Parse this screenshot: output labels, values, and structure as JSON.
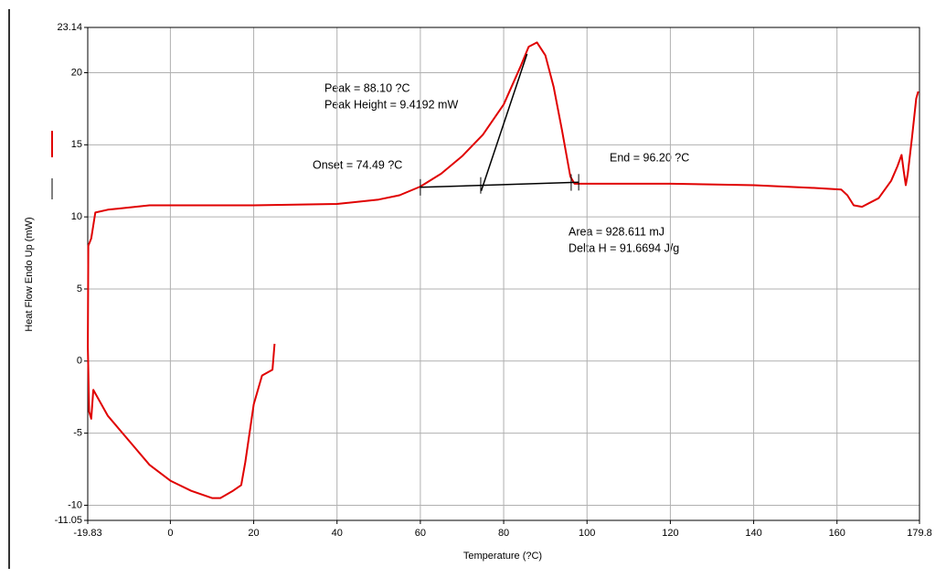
{
  "chart_data": {
    "type": "line",
    "xlabel": "Temperature (?C)",
    "ylabel": "Heat Flow Endo Up (mW)",
    "x": [
      25,
      24.5,
      22,
      20,
      18,
      17,
      15,
      12,
      10,
      5,
      0,
      -5,
      -10,
      -15,
      -18.5,
      -19,
      -19.5,
      -19.8,
      -19.7,
      -19,
      -18,
      -15,
      -5,
      20,
      40,
      50,
      55,
      60,
      65,
      70,
      75,
      80,
      84,
      86,
      88,
      90,
      92,
      94,
      96,
      97,
      100,
      120,
      140,
      155,
      161,
      162.5,
      164,
      166,
      170,
      173,
      174.5,
      175.5,
      176,
      176.5,
      177,
      178,
      179,
      179.5
    ],
    "series": [
      {
        "color": "#e00000",
        "values": [
          1.2,
          -0.6,
          -1,
          -3,
          -7,
          -8.6,
          -9,
          -9.5,
          -9.5,
          -9,
          -8.3,
          -7.2,
          -5.5,
          -3.8,
          -2,
          -4,
          -3.5,
          1,
          8,
          8.5,
          10.3,
          10.5,
          10.8,
          10.8,
          10.9,
          11.2,
          11.5,
          12.1,
          13,
          14.2,
          15.7,
          17.8,
          20.4,
          21.8,
          22.1,
          21.2,
          19,
          16,
          12.8,
          12.3,
          12.3,
          12.3,
          12.2,
          12,
          11.9,
          11.5,
          10.8,
          10.7,
          11.3,
          12.5,
          13.5,
          14.3,
          13.2,
          12.2,
          13,
          15.5,
          18.2,
          18.7
        ]
      }
    ],
    "construction_lines": [
      {
        "color": "#000000",
        "x": [
          60,
          98
        ],
        "values": [
          12.05,
          12.4
        ]
      },
      {
        "color": "#000000",
        "x": [
          74.6,
          85.6
        ],
        "values": [
          11.8,
          21.3
        ]
      }
    ],
    "baseline_markers": [
      60,
      74.49,
      96.2,
      98
    ],
    "annotations": [
      "Peak = 88.10 ?C",
      "Peak Height = 9.4192 mW",
      "Onset = 74.49 ?C",
      "End = 96.20 ?C",
      "Area = 928.611 mJ",
      "Delta H = 91.6694 J/g"
    ],
    "xlim": [
      -19.83,
      179.8
    ],
    "ylim": [
      -11.05,
      23.14
    ],
    "xticks": [
      -19.83,
      0,
      20,
      40,
      60,
      80,
      100,
      120,
      140,
      160,
      179.8
    ],
    "yticks": [
      -11.05,
      -10,
      -5,
      0,
      5,
      10,
      15,
      20,
      23.14
    ],
    "grid": true
  }
}
